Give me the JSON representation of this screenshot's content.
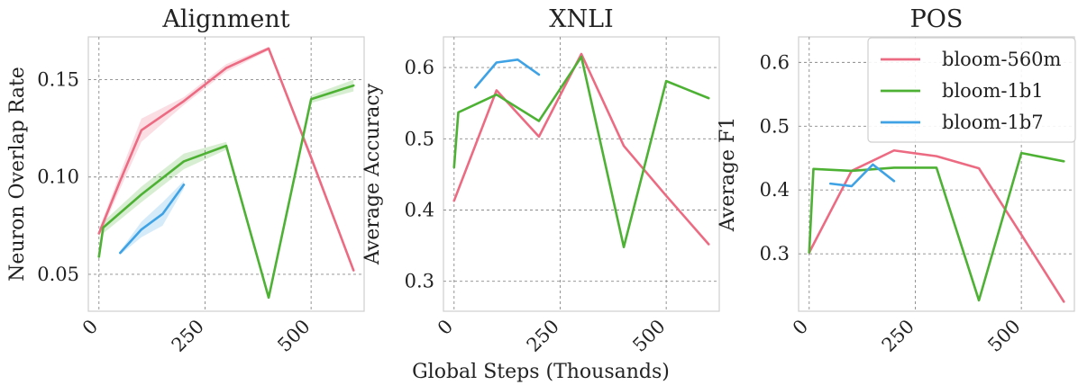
{
  "figure": {
    "xlabel": "Global Steps (Thousands)"
  },
  "colors": {
    "bloom-560m": "#ec6b82",
    "bloom-1b1": "#4db134",
    "bloom-1b7": "#3ea2e5"
  },
  "legend": [
    "bloom-560m",
    "bloom-1b1",
    "bloom-1b7"
  ],
  "chart_data": [
    {
      "type": "line",
      "title": "Alignment",
      "xlabel": "Global Steps (Thousands)",
      "ylabel": "Neuron Overlap Rate",
      "xlim": [
        -25,
        625
      ],
      "ylim": [
        0.031,
        0.172
      ],
      "xticks": [
        0,
        250,
        500
      ],
      "yticks": [
        0.05,
        0.1,
        0.15
      ],
      "ytick_labels": [
        "0.05",
        "0.10",
        "0.15"
      ],
      "grid": true,
      "series": [
        {
          "name": "bloom-560m",
          "x": [
            0,
            50,
            100,
            200,
            300,
            400,
            500,
            600
          ],
          "y": [
            0.071,
            0.098,
            0.124,
            0.139,
            0.156,
            0.166,
            0.11,
            0.052
          ],
          "band": [
            0.002,
            0.004,
            0.006,
            0.002,
            0.002,
            0.001,
            0.002,
            0.001
          ]
        },
        {
          "name": "bloom-1b1",
          "x": [
            0,
            10,
            100,
            200,
            300,
            400,
            500,
            600
          ],
          "y": [
            0.059,
            0.074,
            0.091,
            0.108,
            0.116,
            0.038,
            0.14,
            0.147
          ],
          "band": [
            0.002,
            0.003,
            0.004,
            0.004,
            0.002,
            0.001,
            0.002,
            0.003
          ]
        },
        {
          "name": "bloom-1b7",
          "x": [
            50,
            100,
            150,
            200
          ],
          "y": [
            0.061,
            0.073,
            0.081,
            0.096
          ],
          "band": [
            0.001,
            0.004,
            0.006,
            0.002
          ]
        }
      ]
    },
    {
      "type": "line",
      "title": "XNLI",
      "xlabel": "Global Steps (Thousands)",
      "ylabel": "Average Accuracy",
      "xlim": [
        -25,
        625
      ],
      "ylim": [
        0.258,
        0.643
      ],
      "xticks": [
        0,
        250,
        500
      ],
      "yticks": [
        0.3,
        0.4,
        0.5,
        0.6
      ],
      "ytick_labels": [
        "0.3",
        "0.4",
        "0.5",
        "0.6"
      ],
      "grid": true,
      "series": [
        {
          "name": "bloom-560m",
          "x": [
            0,
            100,
            200,
            300,
            400,
            500,
            600
          ],
          "y": [
            0.413,
            0.568,
            0.503,
            0.619,
            0.49,
            0.42,
            0.352
          ]
        },
        {
          "name": "bloom-1b1",
          "x": [
            0,
            10,
            100,
            200,
            300,
            400,
            500,
            600
          ],
          "y": [
            0.46,
            0.537,
            0.562,
            0.525,
            0.615,
            0.348,
            0.581,
            0.557
          ]
        },
        {
          "name": "bloom-1b7",
          "x": [
            50,
            100,
            150,
            200
          ],
          "y": [
            0.572,
            0.607,
            0.611,
            0.59
          ]
        }
      ]
    },
    {
      "type": "line",
      "title": "POS",
      "xlabel": "Global Steps (Thousands)",
      "ylabel": "Average F1",
      "xlim": [
        -25,
        625
      ],
      "ylim": [
        0.21,
        0.64
      ],
      "xticks": [
        0,
        250,
        500
      ],
      "yticks": [
        0.3,
        0.4,
        0.5,
        0.6
      ],
      "ytick_labels": [
        "0.3",
        "0.4",
        "0.5",
        "0.6"
      ],
      "grid": true,
      "legend": "top-right",
      "series": [
        {
          "name": "bloom-560m",
          "x": [
            0,
            100,
            200,
            300,
            400,
            500,
            600
          ],
          "y": [
            0.302,
            0.43,
            0.462,
            0.453,
            0.434,
            0.33,
            0.225
          ]
        },
        {
          "name": "bloom-1b1",
          "x": [
            0,
            10,
            100,
            200,
            300,
            400,
            500,
            600
          ],
          "y": [
            0.302,
            0.433,
            0.43,
            0.435,
            0.435,
            0.227,
            0.458,
            0.445
          ]
        },
        {
          "name": "bloom-1b7",
          "x": [
            50,
            100,
            150,
            200
          ],
          "y": [
            0.41,
            0.406,
            0.44,
            0.414
          ]
        }
      ]
    }
  ]
}
